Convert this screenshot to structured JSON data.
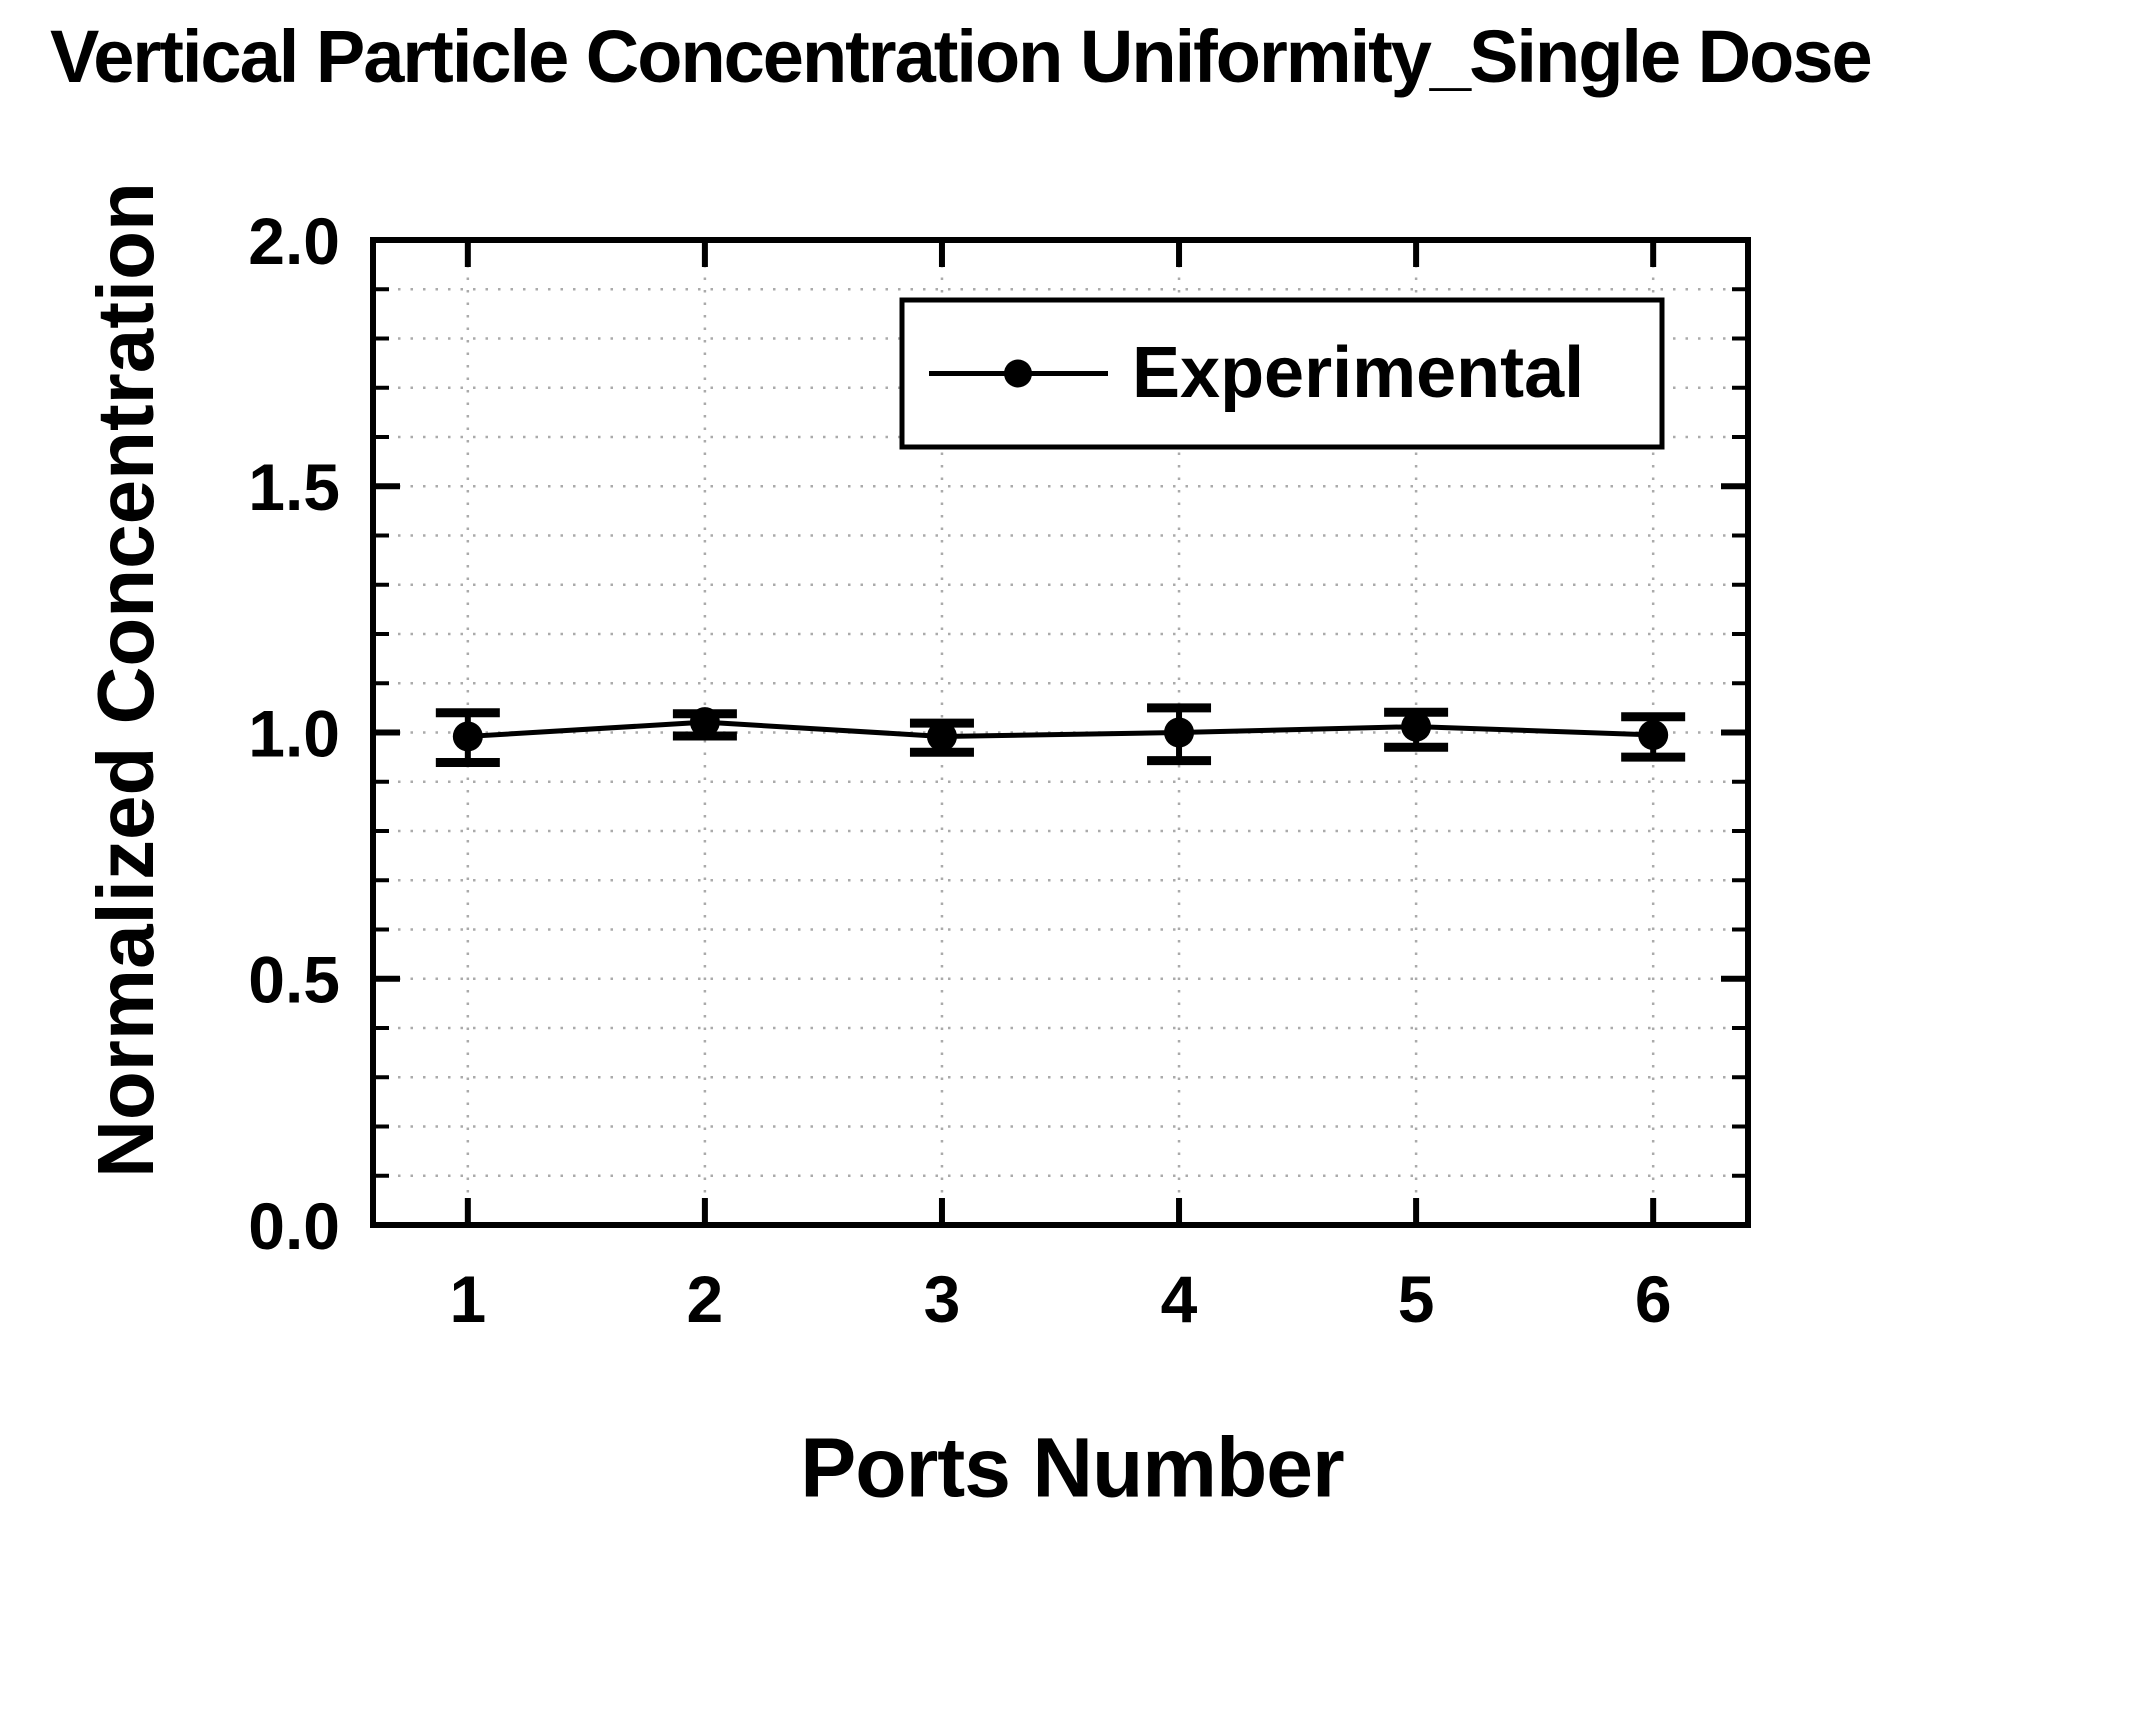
{
  "page": {
    "background": "#ffffff"
  },
  "chart_data": {
    "type": "line",
    "title": "Vertical Particle Concentration Uniformity_Single Dose",
    "xlabel": "Ports Number",
    "ylabel": "Normalized Concentration",
    "x": [
      1,
      2,
      3,
      4,
      5,
      6
    ],
    "series": [
      {
        "name": "Experimental",
        "values": [
          0.992,
          1.021,
          0.992,
          1.0,
          1.012,
          0.995
        ],
        "err_up": [
          0.048,
          0.017,
          0.027,
          0.05,
          0.029,
          0.037
        ],
        "err_down": [
          0.053,
          0.028,
          0.032,
          0.057,
          0.042,
          0.045
        ],
        "color": "#000000",
        "marker": "filled-circle"
      }
    ],
    "xlim": [
      0.6,
      6.4
    ],
    "ylim": [
      0.0,
      2.0
    ],
    "xticks": [
      1,
      2,
      3,
      4,
      5,
      6
    ],
    "xtick_labels": [
      "1",
      "2",
      "3",
      "4",
      "5",
      "6"
    ],
    "ytick_values": [
      2.0,
      1.5,
      1.0,
      0.5,
      0.0
    ],
    "ytick_labels": [
      "2.0",
      "1.5",
      "1.0",
      "0.5",
      "0.0"
    ],
    "y_minor_step": 0.1,
    "grid": {
      "style": "dotted",
      "color": "#aaaaaa",
      "horizontal_every": 0.1,
      "vertical_at_xticks": true
    },
    "legend": {
      "position": "upper-right-inside",
      "border": true
    },
    "colors": {
      "axis": "#000000",
      "grid": "#aaaaaa",
      "background": "#ffffff",
      "series": "#000000"
    }
  }
}
